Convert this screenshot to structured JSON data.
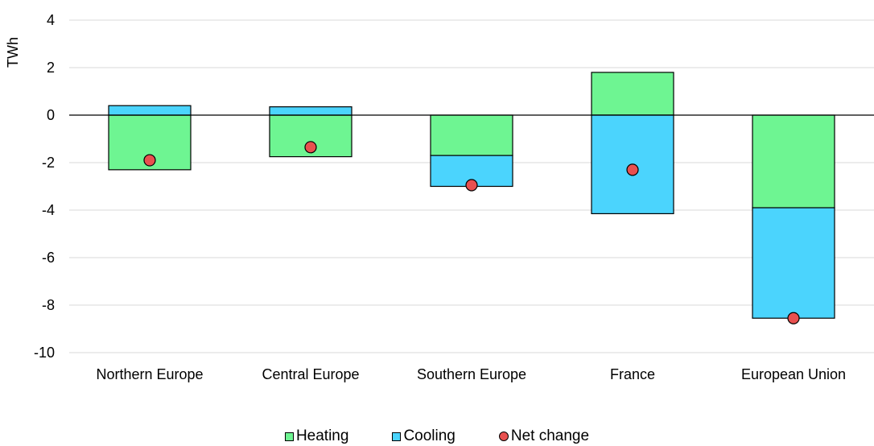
{
  "chart_data": {
    "type": "bar",
    "stacked": true,
    "categories": [
      "Northern Europe",
      "Central Europe",
      "Southern Europe",
      "France",
      "European Union"
    ],
    "series": [
      {
        "name": "Heating",
        "kind": "bar",
        "color": "#6ef592",
        "values": [
          -2.3,
          -1.75,
          -1.7,
          1.8,
          -3.9
        ]
      },
      {
        "name": "Cooling",
        "kind": "bar",
        "color": "#4bd4fd",
        "values": [
          0.4,
          0.35,
          -1.3,
          -4.15,
          -4.65
        ]
      },
      {
        "name": "Net change",
        "kind": "point",
        "color": "#e8504f",
        "values": [
          -1.9,
          -1.35,
          -2.95,
          -2.3,
          -8.55
        ]
      }
    ],
    "ylabel": "TWh",
    "ylim": [
      -10,
      4
    ],
    "yticks": [
      4,
      2,
      0,
      -2,
      -4,
      -6,
      -8,
      -10
    ],
    "grid": true,
    "legend_position": "bottom"
  }
}
